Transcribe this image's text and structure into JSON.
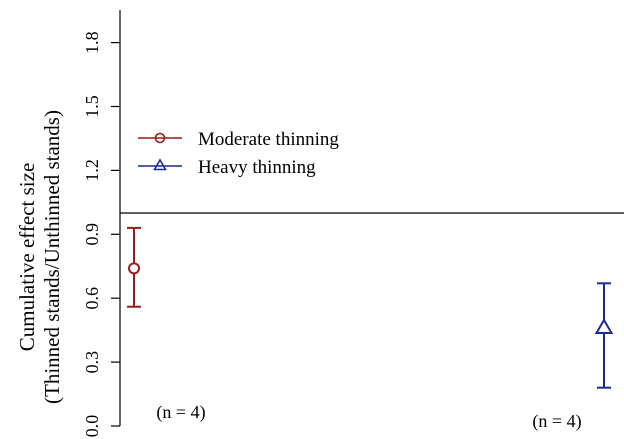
{
  "chart_data": {
    "type": "scatter",
    "ylabel_line1": "Cumulative effect size",
    "ylabel_line2": "(Thinned stands/Unthinned stands)",
    "ylim": [
      0.0,
      2.0
    ],
    "yticks": [
      "0.0",
      "0.3",
      "0.6",
      "0.9",
      "1.2",
      "1.5",
      "1.8"
    ],
    "reference_line": 1.0,
    "grid": false,
    "legend_position": "upper-left",
    "series": [
      {
        "name": "Moderate thinning",
        "marker": "circle",
        "color": "#a01818",
        "value": 0.74,
        "ci_low": 0.56,
        "ci_high": 0.93,
        "n_label": "(n = 4)"
      },
      {
        "name": "Heavy thinning",
        "marker": "triangle",
        "color": "#1c2a99",
        "value": 0.46,
        "ci_low": 0.18,
        "ci_high": 0.67,
        "n_label": "(n = 4)"
      }
    ]
  }
}
